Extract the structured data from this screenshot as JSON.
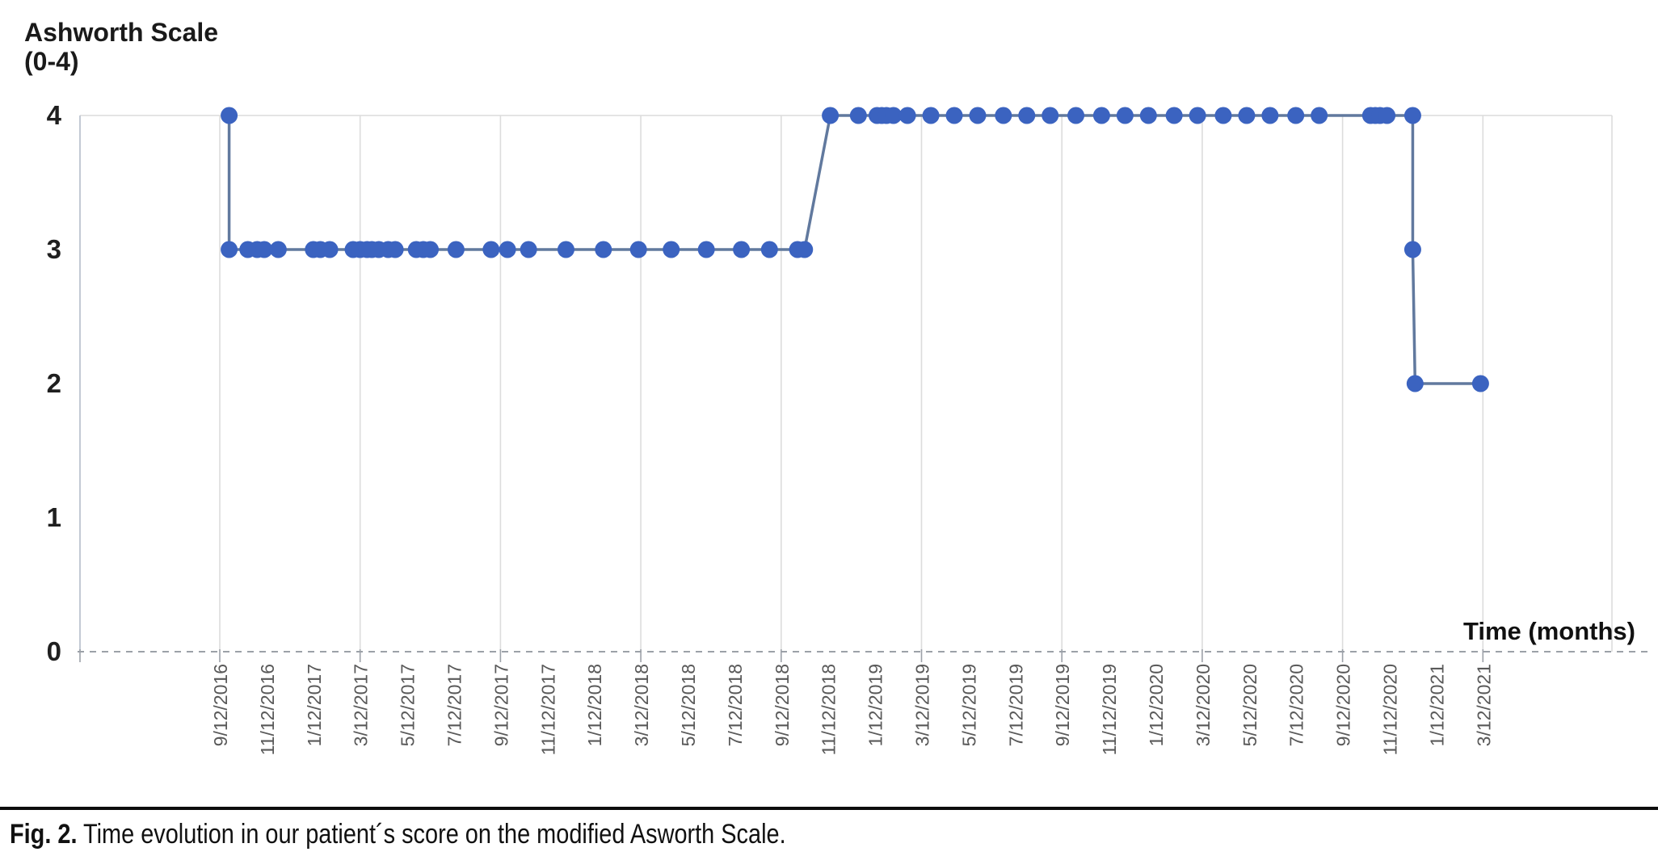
{
  "chart": {
    "y_axis_title_line1": "Ashworth Scale",
    "y_axis_title_line2": "(0-4)",
    "x_axis_title": "Time (months)"
  },
  "caption": {
    "label": "Fig. 2.",
    "text": "Time evolution in our patient´s score on the modified Asworth Scale."
  },
  "chart_data": {
    "type": "line",
    "title": "",
    "xlabel": "Time (months)",
    "ylabel": "Ashworth Scale (0-4)",
    "ylim": [
      0,
      4
    ],
    "xlim_months": [
      0,
      59.5
    ],
    "y_ticks": [
      0,
      1,
      2,
      3,
      4
    ],
    "x_unit": "months since first visit (9/12/2016)",
    "x_tick_interval_months": 2,
    "x_gridline_interval_months": 6,
    "x_tick_labels": [
      "9/12/2016",
      "11/12/2016",
      "1/12/2017",
      "3/12/2017",
      "5/12/2017",
      "7/12/2017",
      "9/12/2017",
      "11/12/2017",
      "1/12/2018",
      "3/12/2018",
      "5/12/2018",
      "7/12/2018",
      "9/12/2018",
      "11/12/2018",
      "1/12/2019",
      "3/12/2019",
      "5/12/2019",
      "7/12/2019",
      "9/12/2019",
      "11/12/2019",
      "1/12/2020",
      "3/12/2020",
      "5/12/2020",
      "7/12/2020",
      "9/12/2020",
      "11/12/2020",
      "1/12/2021",
      "3/12/2021"
    ],
    "grid": {
      "vertical_every_6_months": true,
      "horizontal_line_at_4": true,
      "zero_axis_dashed": true
    },
    "legend": null,
    "colors": {
      "marker": "#3b63c0",
      "line": "#61799e",
      "gridline": "#dcdcdc",
      "axis_line": "#c3cad4",
      "dashed_zero_line": "#9ca1a8",
      "x_tick_label": "#595959",
      "y_tick_label": "#1f1f1f"
    },
    "points_months_vs_score": [
      [
        0.4,
        4
      ],
      [
        0.4,
        3
      ],
      [
        1.2,
        3
      ],
      [
        1.6,
        3
      ],
      [
        1.9,
        3
      ],
      [
        2.5,
        3
      ],
      [
        4.0,
        3
      ],
      [
        4.3,
        3
      ],
      [
        4.7,
        3
      ],
      [
        5.7,
        3
      ],
      [
        6.0,
        3
      ],
      [
        6.3,
        3
      ],
      [
        6.5,
        3
      ],
      [
        6.8,
        3
      ],
      [
        7.2,
        3
      ],
      [
        7.5,
        3
      ],
      [
        8.4,
        3
      ],
      [
        8.7,
        3
      ],
      [
        9.0,
        3
      ],
      [
        10.1,
        3
      ],
      [
        11.6,
        3
      ],
      [
        12.3,
        3
      ],
      [
        13.2,
        3
      ],
      [
        14.8,
        3
      ],
      [
        16.4,
        3
      ],
      [
        17.9,
        3
      ],
      [
        19.3,
        3
      ],
      [
        20.8,
        3
      ],
      [
        22.3,
        3
      ],
      [
        23.5,
        3
      ],
      [
        24.7,
        3
      ],
      [
        25.0,
        3
      ],
      [
        26.1,
        4
      ],
      [
        27.3,
        4
      ],
      [
        28.1,
        4
      ],
      [
        28.3,
        4
      ],
      [
        28.5,
        4
      ],
      [
        28.8,
        4
      ],
      [
        29.4,
        4
      ],
      [
        30.4,
        4
      ],
      [
        31.4,
        4
      ],
      [
        32.4,
        4
      ],
      [
        33.5,
        4
      ],
      [
        34.5,
        4
      ],
      [
        35.5,
        4
      ],
      [
        36.6,
        4
      ],
      [
        37.7,
        4
      ],
      [
        38.7,
        4
      ],
      [
        39.7,
        4
      ],
      [
        40.8,
        4
      ],
      [
        41.8,
        4
      ],
      [
        42.9,
        4
      ],
      [
        43.9,
        4
      ],
      [
        44.9,
        4
      ],
      [
        46.0,
        4
      ],
      [
        47.0,
        4
      ],
      [
        49.2,
        4
      ],
      [
        49.4,
        4
      ],
      [
        49.6,
        4
      ],
      [
        49.9,
        4
      ],
      [
        51.0,
        4
      ],
      [
        51.0,
        3
      ],
      [
        51.1,
        2
      ],
      [
        53.9,
        2
      ]
    ]
  }
}
